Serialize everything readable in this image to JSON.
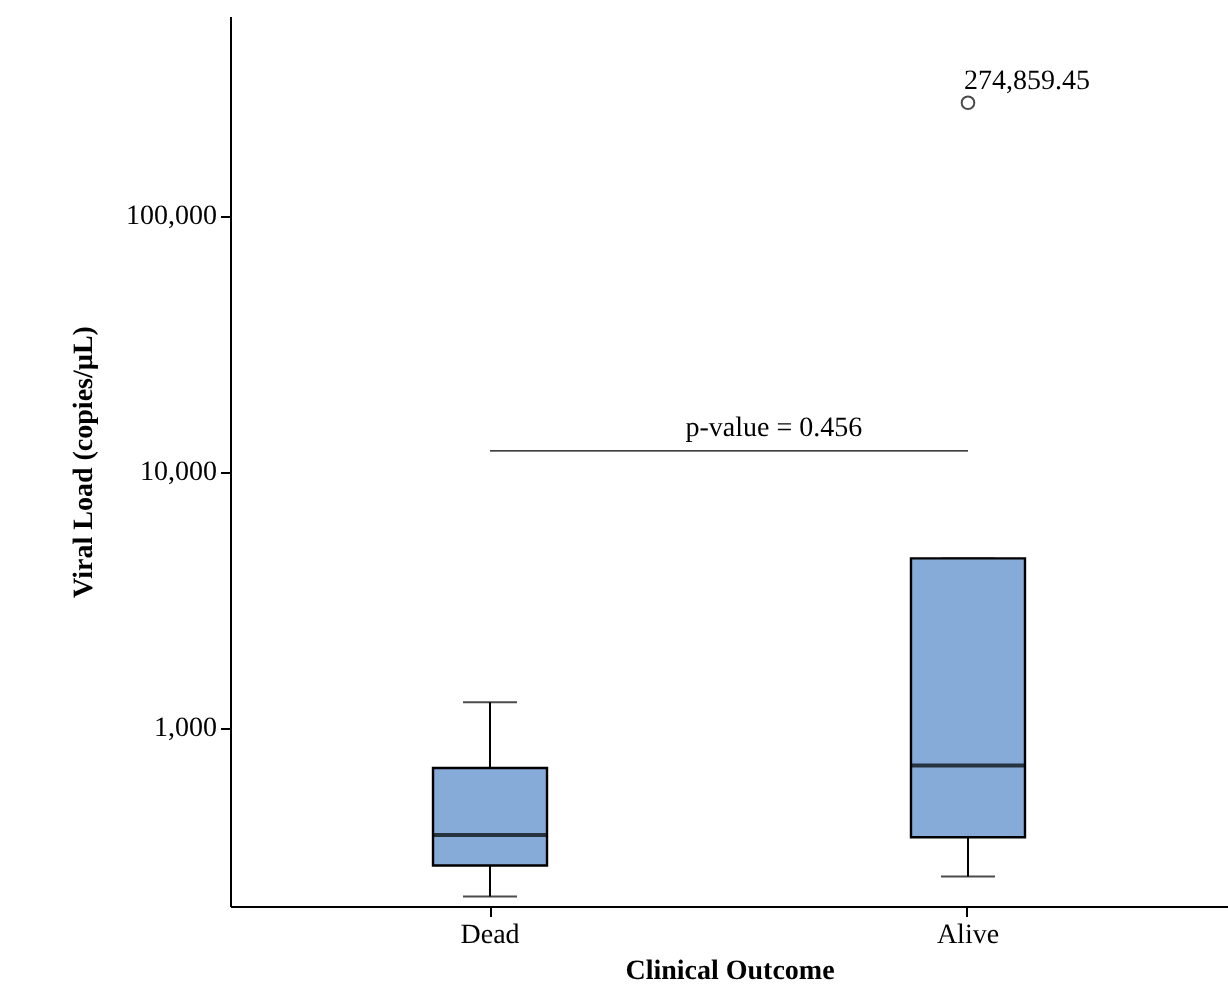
{
  "chart_data": {
    "type": "box",
    "xlabel": "Clinical Outcome",
    "ylabel": "Viral Load (copies/µL)",
    "categories": [
      "Dead",
      "Alive"
    ],
    "color": "#87abd8",
    "boxes": [
      {
        "low": 218,
        "q1": 288,
        "median": 379,
        "q3": 692,
        "high": 1250
      },
      {
        "low": 261,
        "q1": 371,
        "median": 708,
        "q3": 4560,
        "high": 4560,
        "outliers": [
          274859.45
        ]
      }
    ],
    "series": [
      {
        "type": "line",
        "x": [
          "Dead",
          "Alive"
        ],
        "values": [
          12000,
          12000
        ],
        "color": "#000000"
      }
    ],
    "log": "y",
    "ylim": [
      200,
      600000
    ],
    "yticks": [
      {
        "value": 1000,
        "label": "1,000"
      },
      {
        "value": 10000,
        "label": "10,000"
      },
      {
        "value": 100000,
        "label": "100,000"
      }
    ],
    "annotations": [
      "p-value = 0.456",
      "274,859.45"
    ]
  }
}
